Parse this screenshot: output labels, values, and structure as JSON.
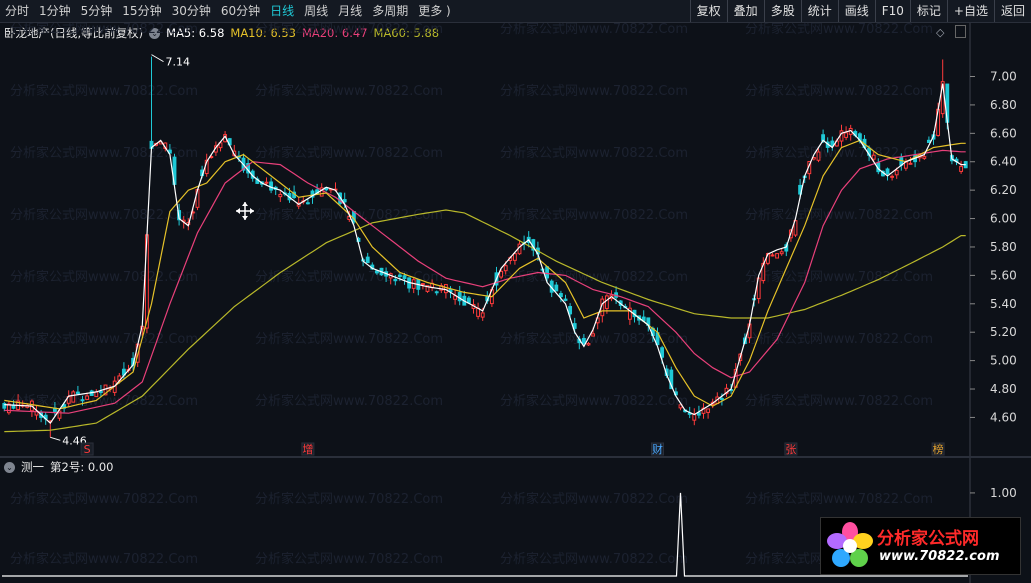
{
  "toolbar": {
    "timeframes": [
      "分时",
      "1分钟",
      "5分钟",
      "15分钟",
      "30分钟",
      "60分钟",
      "日线",
      "周线",
      "月线",
      "多周期",
      "更多 )"
    ],
    "active_index": 6,
    "actions": [
      "复权",
      "叠加",
      "多股",
      "统计",
      "画线",
      "F10",
      "标记",
      "+自选",
      "返回"
    ]
  },
  "main_legend": {
    "title": "卧龙地产(日线,等比前复权)",
    "ma5": "MA5: 6.58",
    "ma10": "MA10: 6.53",
    "ma20": "MA20: 6.47",
    "ma60": "MA60: 5.88"
  },
  "sub_legend": {
    "title": "测一",
    "value": "第2号: 0.00"
  },
  "colors": {
    "up": "#ff3b3b",
    "down": "#1fc9d6",
    "ma5": "#ffffff",
    "ma10": "#e6c229",
    "ma20": "#e8407a",
    "ma60": "#b8b82a",
    "active": "#1fc9d6"
  },
  "chart_data": [
    {
      "type": "candlestick",
      "y_ticks": [
        "7.00",
        "6.80",
        "6.60",
        "6.40",
        "6.20",
        "6.00",
        "5.80",
        "5.60",
        "5.40",
        "5.20",
        "5.00",
        "4.80",
        "4.60"
      ],
      "ylim": [
        4.42,
        7.25
      ],
      "high_label": "7.14",
      "low_label": "4.46",
      "event_markers": [
        {
          "label": "S",
          "color": "#ff3b3b",
          "index": 18
        },
        {
          "label": "增",
          "color": "#ff3b3b",
          "index": 66
        },
        {
          "label": "财",
          "color": "#4aa8ff",
          "index": 142
        },
        {
          "label": "张",
          "color": "#ff3b3b",
          "index": 171
        },
        {
          "label": "榜",
          "color": "#e0a030",
          "index": 203
        }
      ],
      "close_path": [
        [
          0,
          4.69
        ],
        [
          6,
          4.68
        ],
        [
          10,
          4.56
        ],
        [
          14,
          4.75
        ],
        [
          20,
          4.78
        ],
        [
          24,
          4.82
        ],
        [
          28,
          4.97
        ],
        [
          30,
          5.25
        ],
        [
          32,
          6.5
        ],
        [
          34,
          6.55
        ],
        [
          36,
          6.45
        ],
        [
          38,
          6.0
        ],
        [
          40,
          5.95
        ],
        [
          42,
          6.2
        ],
        [
          44,
          6.4
        ],
        [
          46,
          6.5
        ],
        [
          48,
          6.58
        ],
        [
          50,
          6.45
        ],
        [
          52,
          6.38
        ],
        [
          54,
          6.3
        ],
        [
          56,
          6.25
        ],
        [
          58,
          6.22
        ],
        [
          60,
          6.2
        ],
        [
          62,
          6.15
        ],
        [
          64,
          6.1
        ],
        [
          68,
          6.18
        ],
        [
          70,
          6.22
        ],
        [
          72,
          6.2
        ],
        [
          74,
          6.1
        ],
        [
          76,
          5.95
        ],
        [
          78,
          5.7
        ],
        [
          80,
          5.65
        ],
        [
          84,
          5.6
        ],
        [
          88,
          5.55
        ],
        [
          92,
          5.52
        ],
        [
          96,
          5.5
        ],
        [
          100,
          5.42
        ],
        [
          104,
          5.35
        ],
        [
          108,
          5.65
        ],
        [
          112,
          5.8
        ],
        [
          114,
          5.85
        ],
        [
          116,
          5.75
        ],
        [
          118,
          5.55
        ],
        [
          122,
          5.4
        ],
        [
          124,
          5.2
        ],
        [
          126,
          5.1
        ],
        [
          128,
          5.22
        ],
        [
          130,
          5.4
        ],
        [
          132,
          5.45
        ],
        [
          136,
          5.35
        ],
        [
          140,
          5.25
        ],
        [
          142,
          5.1
        ],
        [
          144,
          4.9
        ],
        [
          146,
          4.75
        ],
        [
          148,
          4.65
        ],
        [
          150,
          4.62
        ],
        [
          152,
          4.66
        ],
        [
          154,
          4.7
        ],
        [
          158,
          4.8
        ],
        [
          162,
          5.25
        ],
        [
          164,
          5.6
        ],
        [
          166,
          5.75
        ],
        [
          168,
          5.78
        ],
        [
          170,
          5.8
        ],
        [
          172,
          6.0
        ],
        [
          174,
          6.3
        ],
        [
          176,
          6.45
        ],
        [
          178,
          6.55
        ],
        [
          180,
          6.5
        ],
        [
          182,
          6.6
        ],
        [
          184,
          6.62
        ],
        [
          186,
          6.55
        ],
        [
          190,
          6.35
        ],
        [
          192,
          6.3
        ],
        [
          196,
          6.4
        ],
        [
          200,
          6.45
        ],
        [
          202,
          6.58
        ],
        [
          204,
          6.95
        ],
        [
          206,
          6.42
        ],
        [
          208,
          6.38
        ]
      ],
      "ma10": [
        [
          0,
          4.72
        ],
        [
          12,
          4.66
        ],
        [
          20,
          4.72
        ],
        [
          28,
          4.92
        ],
        [
          32,
          5.4
        ],
        [
          36,
          6.05
        ],
        [
          40,
          6.2
        ],
        [
          44,
          6.25
        ],
        [
          48,
          6.4
        ],
        [
          52,
          6.45
        ],
        [
          56,
          6.35
        ],
        [
          60,
          6.25
        ],
        [
          64,
          6.15
        ],
        [
          70,
          6.18
        ],
        [
          76,
          6.0
        ],
        [
          80,
          5.8
        ],
        [
          86,
          5.62
        ],
        [
          92,
          5.55
        ],
        [
          100,
          5.48
        ],
        [
          106,
          5.45
        ],
        [
          112,
          5.65
        ],
        [
          116,
          5.72
        ],
        [
          122,
          5.55
        ],
        [
          126,
          5.3
        ],
        [
          130,
          5.35
        ],
        [
          136,
          5.35
        ],
        [
          142,
          5.2
        ],
        [
          146,
          4.95
        ],
        [
          150,
          4.75
        ],
        [
          154,
          4.68
        ],
        [
          158,
          4.75
        ],
        [
          162,
          5.0
        ],
        [
          166,
          5.35
        ],
        [
          170,
          5.65
        ],
        [
          174,
          5.95
        ],
        [
          178,
          6.3
        ],
        [
          182,
          6.5
        ],
        [
          186,
          6.55
        ],
        [
          190,
          6.45
        ],
        [
          196,
          6.4
        ],
        [
          202,
          6.5
        ],
        [
          206,
          6.52
        ],
        [
          208,
          6.53
        ]
      ],
      "ma20": [
        [
          0,
          4.65
        ],
        [
          14,
          4.63
        ],
        [
          24,
          4.7
        ],
        [
          30,
          4.85
        ],
        [
          36,
          5.4
        ],
        [
          42,
          5.9
        ],
        [
          48,
          6.25
        ],
        [
          54,
          6.4
        ],
        [
          60,
          6.38
        ],
        [
          66,
          6.25
        ],
        [
          72,
          6.15
        ],
        [
          78,
          6.0
        ],
        [
          84,
          5.85
        ],
        [
          90,
          5.7
        ],
        [
          96,
          5.58
        ],
        [
          104,
          5.52
        ],
        [
          110,
          5.58
        ],
        [
          116,
          5.62
        ],
        [
          122,
          5.6
        ],
        [
          128,
          5.5
        ],
        [
          134,
          5.45
        ],
        [
          140,
          5.38
        ],
        [
          146,
          5.2
        ],
        [
          150,
          5.05
        ],
        [
          154,
          4.95
        ],
        [
          158,
          4.88
        ],
        [
          162,
          4.92
        ],
        [
          168,
          5.15
        ],
        [
          174,
          5.55
        ],
        [
          178,
          5.95
        ],
        [
          182,
          6.2
        ],
        [
          186,
          6.35
        ],
        [
          192,
          6.42
        ],
        [
          198,
          6.45
        ],
        [
          204,
          6.48
        ],
        [
          208,
          6.47
        ]
      ],
      "ma60": [
        [
          0,
          4.5
        ],
        [
          10,
          4.51
        ],
        [
          20,
          4.56
        ],
        [
          30,
          4.75
        ],
        [
          40,
          5.08
        ],
        [
          50,
          5.38
        ],
        [
          60,
          5.62
        ],
        [
          70,
          5.83
        ],
        [
          80,
          5.97
        ],
        [
          90,
          6.03
        ],
        [
          96,
          6.06
        ],
        [
          100,
          6.04
        ],
        [
          110,
          5.88
        ],
        [
          120,
          5.7
        ],
        [
          130,
          5.55
        ],
        [
          140,
          5.43
        ],
        [
          150,
          5.33
        ],
        [
          158,
          5.3
        ],
        [
          166,
          5.3
        ],
        [
          174,
          5.36
        ],
        [
          182,
          5.46
        ],
        [
          190,
          5.57
        ],
        [
          198,
          5.7
        ],
        [
          204,
          5.8
        ],
        [
          208,
          5.88
        ]
      ]
    },
    {
      "type": "line",
      "title": "测一",
      "y_ticks": [
        "1.00"
      ],
      "ylim": [
        0,
        1.3
      ],
      "spike_index": 147,
      "spike_value": 1.0
    }
  ],
  "logo": {
    "title": "分析家公式网",
    "url": "www.70822.com"
  },
  "watermark": "分析家公式网www.70822.Com"
}
